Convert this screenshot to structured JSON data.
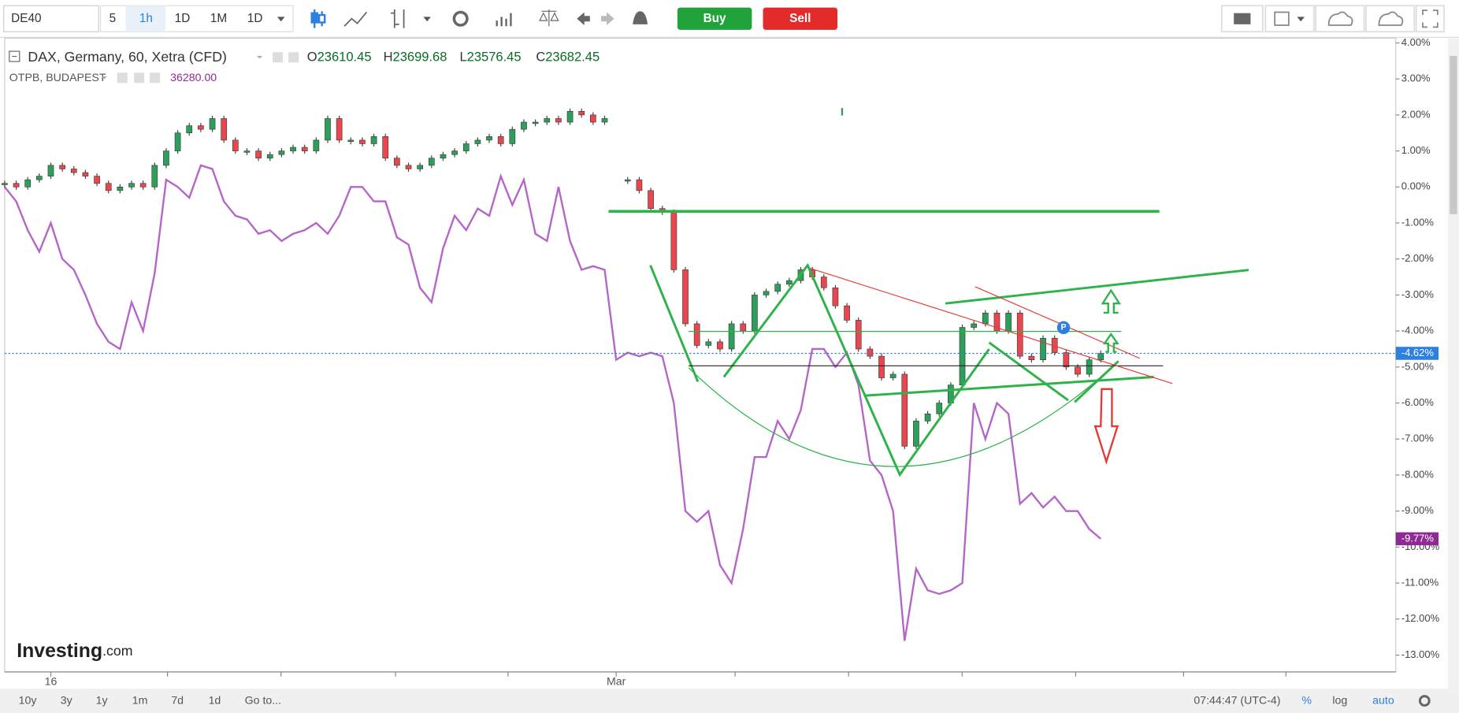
{
  "toolbar": {
    "symbol": "DE40",
    "intervals": [
      "5",
      "1h",
      "1D",
      "1M",
      "1D"
    ],
    "buy": "Buy",
    "sell": "Sell"
  },
  "legend": {
    "ohlc": [
      {
        "key": "O",
        "value": "23610.45"
      },
      {
        "key": "H",
        "value": "23699.68"
      },
      {
        "key": "L",
        "value": "23576.45"
      },
      {
        "key": "C",
        "value": "23682.45"
      }
    ],
    "compare_value": "36280.00"
  },
  "chart_data": {
    "type": "candlestick",
    "categories": [
      null,
      null,
      null,
      null,
      "16",
      null,
      null,
      null,
      null,
      null,
      null,
      null,
      null,
      null,
      null,
      null,
      null,
      null,
      null,
      null,
      null,
      null,
      null,
      null,
      null,
      null,
      null,
      null,
      null,
      null,
      null,
      null,
      null,
      null,
      null,
      null,
      null,
      null,
      null,
      null,
      null,
      null,
      null,
      null,
      null,
      null,
      null,
      null,
      null,
      null,
      null,
      null,
      null,
      "Mar",
      null,
      null,
      null,
      null,
      null,
      null,
      null,
      null,
      null,
      null,
      null,
      null,
      null,
      null,
      null,
      null,
      null,
      null,
      null,
      null,
      null,
      null,
      null,
      null,
      null,
      null,
      null,
      null,
      null,
      null,
      null,
      null,
      null,
      null,
      null,
      null,
      null,
      null,
      null,
      null,
      null,
      null
    ],
    "series": [
      {
        "name": "DAX, Germany, 60, Xetra (CFD)",
        "up_color": "#2e9e5b",
        "down_color": "#e8474f",
        "last_label": "-4.62%",
        "badge_color": "#2d7fe0",
        "values": [
          0.1,
          0.0,
          0.2,
          0.3,
          0.6,
          0.5,
          0.4,
          0.3,
          0.1,
          -0.1,
          0.0,
          0.1,
          0.0,
          0.6,
          1.0,
          1.5,
          1.7,
          1.6,
          1.9,
          1.3,
          1.0,
          1.0,
          0.8,
          0.9,
          1.0,
          1.1,
          1.0,
          1.3,
          1.9,
          1.3,
          1.3,
          1.2,
          1.4,
          0.8,
          0.6,
          0.5,
          0.6,
          0.8,
          0.9,
          1.0,
          1.2,
          1.3,
          1.4,
          1.2,
          1.6,
          1.8,
          1.8,
          1.9,
          1.8,
          2.1,
          2.0,
          1.8,
          1.9,
          null,
          0.2,
          -0.1,
          -0.6,
          -0.7,
          -2.3,
          -3.8,
          -4.4,
          -4.3,
          -4.5,
          -3.8,
          -4.0,
          -3.0,
          -2.9,
          -2.7,
          -2.6,
          -2.3,
          -2.5,
          -2.8,
          -3.3,
          -3.7,
          -4.5,
          -4.7,
          -5.3,
          -5.2,
          -7.2,
          -6.5,
          -6.3,
          -6.0,
          -5.5,
          -3.9,
          -3.8,
          -3.5,
          -4.0,
          -3.5,
          -4.7,
          -4.8,
          -4.2,
          -4.6,
          -5.0,
          -5.2,
          -4.8,
          -4.62
        ]
      },
      {
        "name": "OTPB, BUDAPEST",
        "color": "#b565c8",
        "last_label": "-9.77%",
        "badge_color": "#8e2a94",
        "values": [
          0.0,
          -0.4,
          -1.2,
          -1.8,
          -1.0,
          -2.0,
          -2.3,
          -3.0,
          -3.8,
          -4.3,
          -4.5,
          -3.2,
          -4.0,
          -2.4,
          0.2,
          0.0,
          -0.3,
          0.6,
          0.5,
          -0.4,
          -0.8,
          -0.9,
          -1.3,
          -1.2,
          -1.5,
          -1.3,
          -1.2,
          -1.0,
          -1.3,
          -0.8,
          0.0,
          0.0,
          -0.4,
          -0.4,
          -1.4,
          -1.6,
          -2.8,
          -3.2,
          -1.7,
          -0.8,
          -1.2,
          -0.6,
          -0.8,
          0.3,
          -0.5,
          0.2,
          -1.3,
          -1.5,
          0.0,
          -1.5,
          -2.3,
          -2.2,
          -2.3,
          -4.8,
          -4.6,
          -4.7,
          -4.6,
          -4.7,
          -6.0,
          -9.0,
          -9.3,
          -9.0,
          -10.5,
          -11.0,
          -9.5,
          -7.5,
          -7.5,
          -6.5,
          -7.0,
          -6.2,
          -4.5,
          -4.5,
          -5.0,
          -4.6,
          -5.5,
          -7.6,
          -8.0,
          -9.0,
          -12.6,
          -10.6,
          -11.2,
          -11.3,
          -11.2,
          -11.0,
          -6.0,
          -7.0,
          -6.0,
          -6.3,
          -8.8,
          -8.5,
          -8.9,
          -8.6,
          -9.0,
          -9.0,
          -9.5,
          -9.77
        ]
      }
    ],
    "ylim": [
      4.15,
      -13.45
    ],
    "yticks": [
      {
        "value": 4,
        "label": "4.00%"
      },
      {
        "value": 3,
        "label": "3.00%"
      },
      {
        "value": 2,
        "label": "2.00%"
      },
      {
        "value": 1,
        "label": "1.00%"
      },
      {
        "value": 0,
        "label": "0.00%"
      },
      {
        "value": -1,
        "label": "-1.00%"
      },
      {
        "value": -2,
        "label": "-2.00%"
      },
      {
        "value": -3,
        "label": "-3.00%"
      },
      {
        "value": -4,
        "label": "-4.00%"
      },
      {
        "value": -5,
        "label": "-5.00%"
      },
      {
        "value": -6,
        "label": "-6.00%"
      },
      {
        "value": -7,
        "label": "-7.00%"
      },
      {
        "value": -8,
        "label": "-8.00%"
      },
      {
        "value": -9,
        "label": "-9.00%"
      },
      {
        "value": -10,
        "label": "-10.00%"
      },
      {
        "value": -11,
        "label": "-11.00%"
      },
      {
        "value": -12,
        "label": "-12.00%"
      },
      {
        "value": -13,
        "label": "-13.00%"
      }
    ]
  },
  "footer": {
    "ranges": [
      "10y",
      "3y",
      "1y",
      "1m",
      "7d",
      "1d"
    ],
    "goto": "Go to...",
    "time": "07:44:47 (UTC-4)",
    "percent": "%",
    "log": "log",
    "auto": "auto"
  },
  "logo": {
    "brand": "Investing",
    "suffix": ".com"
  }
}
